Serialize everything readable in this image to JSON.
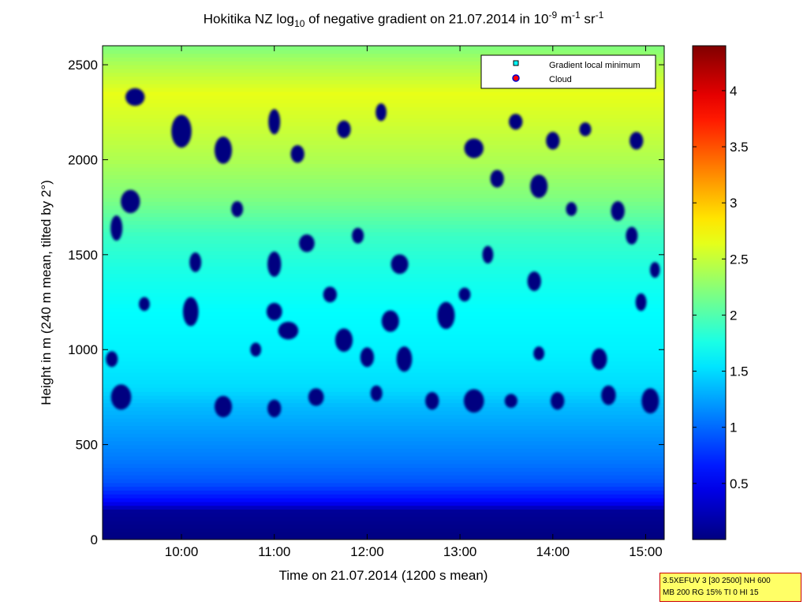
{
  "title": {
    "location": "Hokitika NZ",
    "log_label": "log",
    "log_base": "10",
    "rest": " of negative gradient on 21.07.2014 in 10",
    "exp1": "-9",
    "unit1": " m",
    "exp2": "-1",
    "unit2": " sr",
    "exp3": "-1"
  },
  "info_box": {
    "line1": "3.5XEFUV 3 [30 2500] NH 600",
    "line2": "MB 200 RG 15% TI 0 HI 15"
  },
  "colors": {
    "min": "#00007f",
    "max": "#7f0000",
    "axis": "#000000",
    "gradient_marker": "#00ffff",
    "cloud_marker": "#ff0000"
  },
  "chart_data": {
    "type": "heatmap",
    "xlabel": "Time on 21.07.2014 (1200 s mean)",
    "ylabel": "Height in m (240 m mean, tilted by 2°)",
    "x_ticks": [
      "10:00",
      "11:00",
      "12:00",
      "13:00",
      "14:00",
      "15:00"
    ],
    "x_tick_hours": [
      10,
      11,
      12,
      13,
      14,
      15
    ],
    "xlim_hours": [
      9.15,
      15.2
    ],
    "y_ticks": [
      0,
      500,
      1000,
      1500,
      2000,
      2500
    ],
    "ylim": [
      0,
      2600
    ],
    "colorbar": {
      "ticks": [
        "0.5",
        "1",
        "1.5",
        "2",
        "2.5",
        "3",
        "3.5",
        "4"
      ],
      "tick_values": [
        0.5,
        1,
        1.5,
        2,
        2.5,
        3,
        3.5,
        4
      ],
      "range": [
        0,
        4.4
      ],
      "colormap": "jet"
    },
    "legend": {
      "position": "top-right",
      "entries": [
        {
          "label": "Gradient local minimum",
          "marker": "square",
          "color": "#00ffff"
        },
        {
          "label": "Cloud",
          "marker": "circle",
          "color": "#ff0000"
        }
      ]
    },
    "profile": {
      "heights": [
        0,
        150,
        200,
        300,
        400,
        500,
        600,
        700,
        800,
        1000,
        1200,
        1400,
        1600,
        1800,
        2000,
        2200,
        2350,
        2500,
        2600
      ],
      "values": [
        0.0,
        0.1,
        0.55,
        0.9,
        1.05,
        1.15,
        1.25,
        1.35,
        1.5,
        1.6,
        1.65,
        1.75,
        1.9,
        2.2,
        2.4,
        2.55,
        2.65,
        2.4,
        2.2
      ]
    },
    "patch_value": 0.0,
    "patches": [
      [
        9.5,
        2330,
        0.14,
        60
      ],
      [
        10.0,
        2150,
        0.15,
        140
      ],
      [
        10.45,
        2050,
        0.12,
        110
      ],
      [
        9.45,
        1780,
        0.14,
        90
      ],
      [
        9.3,
        1640,
        0.06,
        100
      ],
      [
        11.0,
        2200,
        0.06,
        100
      ],
      [
        11.25,
        2030,
        0.08,
        60
      ],
      [
        11.75,
        2160,
        0.08,
        60
      ],
      [
        12.15,
        2250,
        0.05,
        60
      ],
      [
        13.15,
        2060,
        0.14,
        70
      ],
      [
        13.6,
        2200,
        0.08,
        50
      ],
      [
        14.0,
        2100,
        0.08,
        60
      ],
      [
        14.35,
        2160,
        0.06,
        40
      ],
      [
        14.9,
        2100,
        0.08,
        60
      ],
      [
        13.85,
        1860,
        0.12,
        90
      ],
      [
        13.4,
        1900,
        0.08,
        60
      ],
      [
        14.7,
        1730,
        0.08,
        70
      ],
      [
        14.85,
        1600,
        0.06,
        60
      ],
      [
        14.2,
        1740,
        0.05,
        40
      ],
      [
        10.6,
        1740,
        0.06,
        50
      ],
      [
        11.0,
        1450,
        0.08,
        100
      ],
      [
        11.35,
        1560,
        0.1,
        60
      ],
      [
        10.15,
        1460,
        0.06,
        70
      ],
      [
        10.1,
        1200,
        0.1,
        120
      ],
      [
        11.9,
        1600,
        0.06,
        50
      ],
      [
        12.35,
        1450,
        0.12,
        70
      ],
      [
        12.25,
        1150,
        0.12,
        80
      ],
      [
        11.6,
        1290,
        0.08,
        50
      ],
      [
        11.0,
        1200,
        0.1,
        60
      ],
      [
        11.15,
        1100,
        0.15,
        60
      ],
      [
        11.75,
        1050,
        0.12,
        90
      ],
      [
        12.0,
        960,
        0.08,
        70
      ],
      [
        12.4,
        950,
        0.1,
        100
      ],
      [
        12.85,
        1180,
        0.12,
        110
      ],
      [
        13.05,
        1290,
        0.06,
        40
      ],
      [
        13.3,
        1500,
        0.05,
        60
      ],
      [
        13.8,
        1360,
        0.08,
        70
      ],
      [
        14.5,
        950,
        0.1,
        80
      ],
      [
        13.85,
        980,
        0.05,
        40
      ],
      [
        9.35,
        750,
        0.15,
        100
      ],
      [
        9.25,
        950,
        0.06,
        50
      ],
      [
        10.45,
        700,
        0.12,
        80
      ],
      [
        11.0,
        690,
        0.08,
        60
      ],
      [
        11.45,
        750,
        0.1,
        60
      ],
      [
        12.1,
        770,
        0.06,
        50
      ],
      [
        12.7,
        730,
        0.08,
        60
      ],
      [
        13.15,
        730,
        0.15,
        90
      ],
      [
        13.55,
        730,
        0.07,
        40
      ],
      [
        14.05,
        730,
        0.08,
        60
      ],
      [
        14.6,
        760,
        0.09,
        70
      ],
      [
        15.05,
        730,
        0.12,
        100
      ],
      [
        14.95,
        1250,
        0.05,
        60
      ],
      [
        15.1,
        1420,
        0.04,
        50
      ],
      [
        10.8,
        1000,
        0.05,
        40
      ],
      [
        9.6,
        1240,
        0.05,
        40
      ]
    ]
  }
}
